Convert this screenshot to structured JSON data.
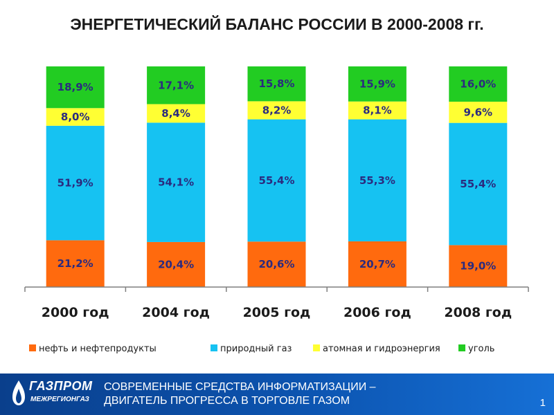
{
  "title": "ЭНЕРГЕТИЧЕСКИЙ БАЛАНС РОССИИ В 2000-2008 гг.",
  "chart_data": {
    "type": "bar",
    "stacked": true,
    "title": "ЭНЕРГЕТИЧЕСКИЙ БАЛАНС РОССИИ В 2000-2008 гг.",
    "categories": [
      "2000 год",
      "2004 год",
      "2005 год",
      "2006 год",
      "2008 год"
    ],
    "ylim": [
      0,
      100
    ],
    "grid": false,
    "legend_position": "bottom",
    "series": [
      {
        "name": "нефть и нефтепродукты",
        "color": "#ff6a0e",
        "values": [
          21.2,
          20.4,
          20.6,
          20.7,
          19.0
        ],
        "labels": [
          "21,2%",
          "20,4%",
          "20,6%",
          "20,7%",
          "19,0%"
        ]
      },
      {
        "name": "природный газ",
        "color": "#16c2f2",
        "values": [
          51.9,
          54.1,
          55.4,
          55.3,
          55.4
        ],
        "labels": [
          "51,9%",
          "54,1%",
          "55,4%",
          "55,3%",
          "55,4%"
        ]
      },
      {
        "name": "атомная и гидроэнергия",
        "color": "#ffff33",
        "values": [
          8.0,
          8.4,
          8.2,
          8.1,
          9.6
        ],
        "labels": [
          "8,0%",
          "8,4%",
          "8,2%",
          "8,1%",
          "9,6%"
        ]
      },
      {
        "name": "уголь",
        "color": "#22cc22",
        "values": [
          18.9,
          17.1,
          15.8,
          15.9,
          16.0
        ],
        "labels": [
          "18,9%",
          "17,1%",
          "15,8%",
          "15,9%",
          "16,0%"
        ]
      }
    ]
  },
  "footer": {
    "logo_main": "ГАЗПРОМ",
    "logo_sub": "МЕЖРЕГИОНГАЗ",
    "line1": "СОВРЕМЕННЫЕ СРЕДСТВА ИНФОРМАТИЗАЦИИ –",
    "line2": "ДВИГАТЕЛЬ ПРОГРЕССА В ТОРГОВЛЕ ГАЗОМ",
    "page_number": "1"
  }
}
